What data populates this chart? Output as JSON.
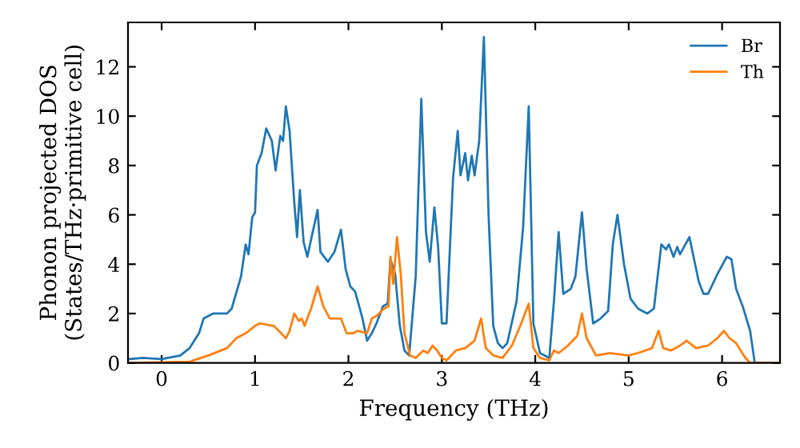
{
  "chart_data": {
    "type": "line",
    "xlabel": "Frequency (THz)",
    "ylabel": "Phonon projected DOS\n(States/THz·primitive cell)",
    "xlim": [
      -0.36,
      6.62
    ],
    "ylim": [
      0,
      13.8
    ],
    "xticks": [
      0,
      1,
      2,
      3,
      4,
      5,
      6
    ],
    "yticks": [
      0,
      2,
      4,
      6,
      8,
      10,
      12
    ],
    "legend": "top right",
    "grid": false,
    "series": [
      {
        "name": "Br",
        "color": "#1f77b4",
        "x": [
          -0.35,
          -0.2,
          0,
          0.2,
          0.3,
          0.4,
          0.45,
          0.55,
          0.7,
          0.75,
          0.85,
          0.9,
          0.93,
          0.97,
          1.0,
          1.02,
          1.07,
          1.12,
          1.18,
          1.22,
          1.27,
          1.3,
          1.33,
          1.37,
          1.42,
          1.45,
          1.48,
          1.52,
          1.56,
          1.6,
          1.67,
          1.7,
          1.78,
          1.85,
          1.92,
          1.97,
          2.02,
          2.07,
          2.1,
          2.15,
          2.2,
          2.25,
          2.3,
          2.37,
          2.42,
          2.45,
          2.5,
          2.55,
          2.6,
          2.65,
          2.72,
          2.78,
          2.83,
          2.87,
          2.92,
          2.96,
          3.0,
          3.05,
          3.12,
          3.17,
          3.2,
          3.25,
          3.28,
          3.32,
          3.35,
          3.4,
          3.45,
          3.5,
          3.55,
          3.6,
          3.65,
          3.7,
          3.8,
          3.87,
          3.93,
          3.98,
          4.05,
          4.15,
          4.2,
          4.25,
          4.3,
          4.38,
          4.43,
          4.5,
          4.55,
          4.62,
          4.7,
          4.78,
          4.83,
          4.88,
          4.95,
          5.02,
          5.1,
          5.2,
          5.27,
          5.35,
          5.4,
          5.43,
          5.48,
          5.52,
          5.55,
          5.65,
          5.75,
          5.8,
          5.85,
          5.95,
          6.05,
          6.1,
          6.15,
          6.22,
          6.3,
          6.35,
          6.6
        ],
        "values": [
          0.15,
          0.2,
          0.15,
          0.3,
          0.6,
          1.2,
          1.8,
          2.0,
          2.0,
          2.2,
          3.5,
          4.8,
          4.4,
          5.9,
          6.1,
          8.0,
          8.5,
          9.5,
          9.0,
          7.8,
          9.2,
          9.0,
          10.4,
          9.4,
          6.5,
          5.1,
          7.0,
          4.9,
          4.3,
          5.0,
          6.2,
          4.5,
          4.1,
          4.5,
          5.4,
          3.8,
          3.1,
          2.9,
          2.5,
          1.8,
          0.9,
          1.2,
          1.6,
          2.3,
          2.4,
          4.2,
          3.6,
          1.5,
          0.5,
          0.3,
          3.5,
          10.7,
          5.3,
          4.1,
          6.3,
          4.7,
          1.6,
          1.6,
          7.5,
          9.4,
          7.6,
          8.5,
          7.4,
          8.4,
          7.6,
          9.0,
          13.2,
          6.0,
          1.5,
          0.8,
          0.6,
          0.8,
          2.5,
          5.5,
          10.4,
          1.6,
          0.4,
          0.2,
          2.5,
          5.3,
          2.8,
          3.0,
          3.5,
          6.1,
          3.8,
          1.6,
          1.8,
          2.1,
          4.8,
          6.0,
          4.0,
          2.6,
          2.2,
          2.0,
          2.2,
          4.8,
          4.6,
          4.8,
          4.3,
          4.7,
          4.4,
          5.1,
          3.3,
          2.8,
          2.8,
          3.6,
          4.3,
          4.2,
          3.0,
          2.3,
          1.3,
          0,
          0
        ]
      },
      {
        "name": "Th",
        "color": "#ff7f0e",
        "x": [
          -0.35,
          0.3,
          0.5,
          0.7,
          0.8,
          0.9,
          1.0,
          1.05,
          1.2,
          1.28,
          1.33,
          1.37,
          1.42,
          1.47,
          1.5,
          1.53,
          1.6,
          1.67,
          1.73,
          1.8,
          1.92,
          1.98,
          2.05,
          2.1,
          2.2,
          2.25,
          2.3,
          2.38,
          2.43,
          2.45,
          2.48,
          2.52,
          2.56,
          2.6,
          2.66,
          2.72,
          2.8,
          2.85,
          2.9,
          2.95,
          3.0,
          3.05,
          3.15,
          3.25,
          3.35,
          3.42,
          3.47,
          3.55,
          3.65,
          3.75,
          3.85,
          3.93,
          3.98,
          4.05,
          4.15,
          4.2,
          4.25,
          4.35,
          4.45,
          4.5,
          4.55,
          4.65,
          4.8,
          5.0,
          5.1,
          5.25,
          5.32,
          5.37,
          5.45,
          5.55,
          5.62,
          5.72,
          5.85,
          5.95,
          6.02,
          6.08,
          6.15,
          6.25,
          6.3,
          6.6
        ],
        "values": [
          0,
          0.05,
          0.3,
          0.6,
          1.0,
          1.2,
          1.5,
          1.6,
          1.5,
          1.2,
          1.0,
          1.3,
          2.0,
          1.7,
          1.8,
          1.5,
          2.2,
          3.1,
          2.3,
          1.8,
          1.8,
          1.2,
          1.2,
          1.3,
          1.2,
          1.8,
          1.9,
          2.2,
          2.3,
          4.3,
          3.2,
          5.1,
          3.6,
          1.2,
          0.3,
          0.2,
          0.5,
          0.4,
          0.7,
          0.5,
          0.2,
          0.1,
          0.5,
          0.6,
          0.9,
          1.8,
          0.6,
          0.3,
          0.2,
          0.7,
          1.6,
          2.4,
          0.6,
          0.2,
          0.1,
          0.5,
          0.4,
          0.7,
          1.1,
          2.0,
          1.0,
          0.3,
          0.4,
          0.3,
          0.4,
          0.6,
          1.3,
          0.6,
          0.5,
          0.7,
          0.9,
          0.6,
          0.7,
          1.0,
          1.3,
          1.0,
          0.8,
          0.2,
          0,
          0
        ]
      }
    ]
  }
}
